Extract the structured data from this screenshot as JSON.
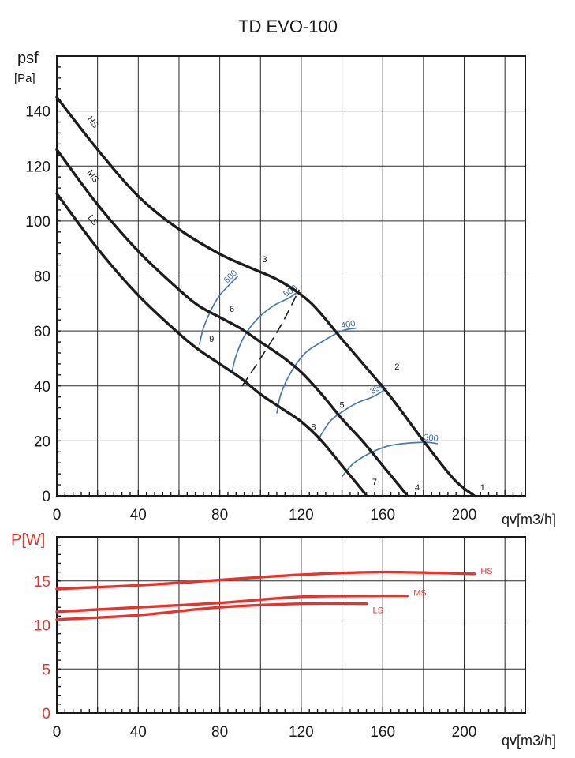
{
  "chart_data": [
    {
      "type": "line",
      "title": "TD EVO-100",
      "ylabel": "psf",
      "yunit": "[Pa]",
      "xlabel": "qv[m3/h]",
      "xlim": [
        0,
        230
      ],
      "ylim": [
        0,
        160
      ],
      "xticks": [
        0,
        40,
        80,
        120,
        160,
        200
      ],
      "yticks": [
        0,
        20,
        40,
        60,
        80,
        100,
        120,
        140
      ],
      "grid": true,
      "series": [
        {
          "name": "HS",
          "x": [
            0,
            20,
            40,
            60,
            80,
            95,
            110,
            125,
            140,
            155,
            165,
            180,
            195,
            205
          ],
          "y": [
            145,
            126,
            109,
            97,
            88,
            83,
            78,
            70,
            57,
            44,
            35,
            20,
            6,
            0
          ]
        },
        {
          "name": "MS",
          "x": [
            0,
            20,
            40,
            60,
            70,
            80,
            90,
            100,
            110,
            120,
            130,
            140,
            150,
            160,
            170,
            172
          ],
          "y": [
            126,
            106,
            89,
            75,
            69,
            65,
            61,
            56,
            51,
            45,
            37,
            28,
            20,
            11,
            2,
            0
          ]
        },
        {
          "name": "LS",
          "x": [
            0,
            20,
            40,
            60,
            70,
            80,
            90,
            100,
            110,
            120,
            130,
            140,
            150,
            152
          ],
          "y": [
            110,
            90,
            73,
            59,
            53,
            48,
            43,
            37,
            32,
            27,
            20,
            11,
            2,
            0
          ]
        }
      ],
      "point_labels": [
        {
          "label": "1",
          "x": 209,
          "y": 2
        },
        {
          "label": "2",
          "x": 167,
          "y": 46
        },
        {
          "label": "3",
          "x": 102,
          "y": 85
        },
        {
          "label": "4",
          "x": 177,
          "y": 2
        },
        {
          "label": "5",
          "x": 140,
          "y": 32
        },
        {
          "label": "6",
          "x": 86,
          "y": 67
        },
        {
          "label": "7",
          "x": 156,
          "y": 4
        },
        {
          "label": "8",
          "x": 126,
          "y": 24
        },
        {
          "label": "9",
          "x": 76,
          "y": 56
        }
      ],
      "iso_lines": [
        {
          "label": "300",
          "x": [
            140,
            146,
            155,
            165,
            180,
            187
          ],
          "y": [
            7,
            12,
            16,
            18.5,
            19.5,
            19
          ]
        },
        {
          "label": "350",
          "x": [
            128,
            134,
            141,
            148,
            155,
            162
          ],
          "y": [
            20,
            27,
            31,
            34,
            36,
            39
          ]
        },
        {
          "label": "400",
          "x": [
            108,
            110,
            115,
            122,
            130,
            140,
            147
          ],
          "y": [
            30,
            37,
            45,
            52,
            56,
            60,
            61
          ]
        },
        {
          "label": "500",
          "x": [
            86,
            88,
            92,
            98,
            106,
            114,
            118
          ],
          "y": [
            45,
            51,
            58,
            64,
            69,
            72,
            74
          ]
        },
        {
          "label": "600",
          "x": [
            70,
            72,
            76,
            80,
            85,
            89
          ],
          "y": [
            55,
            61,
            68,
            73,
            77,
            80
          ]
        },
        {
          "label": "",
          "x": [
            91,
            100,
            110,
            119
          ],
          "y": [
            40,
            50,
            62,
            75
          ]
        }
      ]
    },
    {
      "type": "line",
      "ylabel": "P[W]",
      "xlabel": "qv[m3/h]",
      "xlim": [
        0,
        230
      ],
      "ylim": [
        0,
        20
      ],
      "xticks": [
        0,
        40,
        80,
        120,
        160,
        200
      ],
      "yticks": [
        0,
        5,
        10,
        15
      ],
      "grid": true,
      "series": [
        {
          "name": "HS",
          "x": [
            0,
            40,
            80,
            120,
            160,
            205
          ],
          "y": [
            14.1,
            14.5,
            15.1,
            15.7,
            16.0,
            15.8
          ]
        },
        {
          "name": "MS",
          "x": [
            0,
            40,
            80,
            120,
            160,
            172
          ],
          "y": [
            11.5,
            12.0,
            12.5,
            13.2,
            13.3,
            13.3
          ]
        },
        {
          "name": "LS",
          "x": [
            0,
            40,
            80,
            120,
            152
          ],
          "y": [
            10.6,
            11.1,
            12.0,
            12.4,
            12.4
          ]
        }
      ]
    }
  ]
}
